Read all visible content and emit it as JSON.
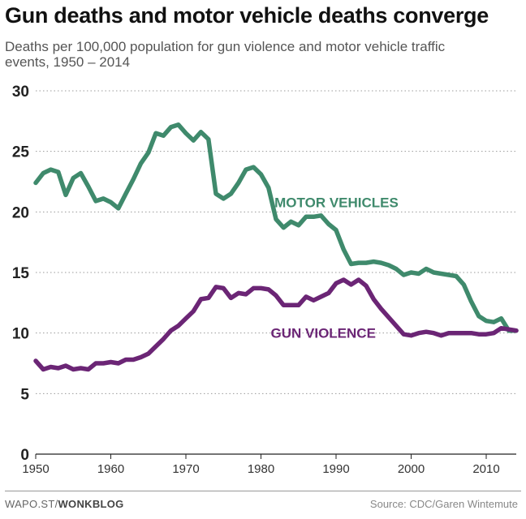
{
  "page": {
    "title": "Gun deaths and motor vehicle deaths converge",
    "subtitle": "Deaths per 100,000 population for gun violence and motor vehicle traffic events, 1950 – 2014"
  },
  "footer": {
    "source_prefix": "WAPO.ST/",
    "source_brand": "WONKBLOG",
    "credit": "Source: CDC/Garen Wintemute"
  },
  "chart_data": {
    "type": "line",
    "title": "Gun deaths and motor vehicle deaths converge",
    "subtitle": "Deaths per 100,000 population for gun violence and motor vehicle traffic events, 1950 – 2014",
    "xlabel": "",
    "ylabel": "",
    "xlim": [
      1950,
      2014
    ],
    "ylim": [
      0,
      30
    ],
    "x_ticks": [
      1950,
      1960,
      1970,
      1980,
      1990,
      2000,
      2010
    ],
    "y_ticks": [
      0,
      5,
      10,
      15,
      20,
      25,
      30
    ],
    "grid": "horizontal dotted",
    "legend": "direct labels on lines",
    "x": [
      1950,
      1951,
      1952,
      1953,
      1954,
      1955,
      1956,
      1957,
      1958,
      1959,
      1960,
      1961,
      1962,
      1963,
      1964,
      1965,
      1966,
      1967,
      1968,
      1969,
      1970,
      1971,
      1972,
      1973,
      1974,
      1975,
      1976,
      1977,
      1978,
      1979,
      1980,
      1981,
      1982,
      1983,
      1984,
      1985,
      1986,
      1987,
      1988,
      1989,
      1990,
      1991,
      1992,
      1993,
      1994,
      1995,
      1996,
      1997,
      1998,
      1999,
      2000,
      2001,
      2002,
      2003,
      2004,
      2005,
      2006,
      2007,
      2008,
      2009,
      2010,
      2011,
      2012,
      2013,
      2014
    ],
    "series": [
      {
        "name": "MOTOR VEHICLES",
        "color": "#3f8a6c",
        "values": [
          22.4,
          23.2,
          23.5,
          23.3,
          21.4,
          22.8,
          23.2,
          22.1,
          20.9,
          21.1,
          20.8,
          20.3,
          21.5,
          22.7,
          24.0,
          24.9,
          26.5,
          26.3,
          27.0,
          27.2,
          26.5,
          25.9,
          26.6,
          26.0,
          21.5,
          21.1,
          21.5,
          22.4,
          23.5,
          23.7,
          23.1,
          22.0,
          19.4,
          18.7,
          19.2,
          18.9,
          19.6,
          19.6,
          19.7,
          19.0,
          18.5,
          16.9,
          15.7,
          15.8,
          15.8,
          15.9,
          15.8,
          15.6,
          15.3,
          14.8,
          15.0,
          14.9,
          15.3,
          15.0,
          14.9,
          14.8,
          14.7,
          14.0,
          12.6,
          11.4,
          11.0,
          10.9,
          11.2,
          10.2,
          10.2
        ]
      },
      {
        "name": "GUN VIOLENCE",
        "color": "#6b2575",
        "values": [
          7.7,
          7.0,
          7.2,
          7.1,
          7.3,
          7.0,
          7.1,
          7.0,
          7.5,
          7.5,
          7.6,
          7.5,
          7.8,
          7.8,
          8.0,
          8.3,
          8.9,
          9.5,
          10.2,
          10.6,
          11.2,
          11.8,
          12.8,
          12.9,
          13.8,
          13.7,
          12.9,
          13.3,
          13.2,
          13.7,
          13.7,
          13.6,
          13.1,
          12.3,
          12.3,
          12.3,
          13.0,
          12.7,
          13.0,
          13.3,
          14.1,
          14.4,
          14.0,
          14.4,
          13.9,
          12.8,
          12.0,
          11.3,
          10.6,
          9.9,
          9.8,
          10.0,
          10.1,
          10.0,
          9.8,
          10.0,
          10.0,
          10.0,
          10.0,
          9.9,
          9.9,
          10.0,
          10.4,
          10.3,
          10.2
        ]
      }
    ]
  }
}
